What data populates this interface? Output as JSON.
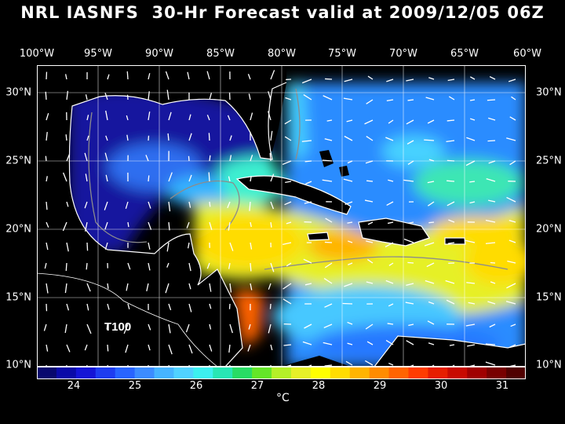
{
  "title": "NRL IASNFS  30-Hr Forecast valid at 2009/12/05 06Z",
  "map": {
    "lon_labels": [
      "100°W",
      "95°W",
      "90°W",
      "85°W",
      "80°W",
      "75°W",
      "70°W",
      "65°W",
      "60°W"
    ],
    "lat_labels": [
      "30°N",
      "25°N",
      "20°N",
      "15°N",
      "10°N"
    ],
    "lon_range": [
      -100,
      -60
    ],
    "lat_range": [
      10,
      31
    ],
    "annotation": "T100",
    "variable": "sea surface temperature with current vectors"
  },
  "colorbar": {
    "ticks": [
      "24",
      "25",
      "26",
      "27",
      "28",
      "29",
      "30",
      "31"
    ],
    "unit": "°C",
    "range": [
      23.5,
      31.5
    ],
    "colors": [
      "#08086e",
      "#0a0aa8",
      "#1414d6",
      "#1e3cf0",
      "#2864ff",
      "#3c8cff",
      "#46b4ff",
      "#50d2ff",
      "#3cf0f0",
      "#28e6b4",
      "#28dc64",
      "#64e628",
      "#b4f028",
      "#e6f028",
      "#ffff00",
      "#ffdc00",
      "#ffb400",
      "#ff8c00",
      "#ff6400",
      "#ff3c00",
      "#e61e00",
      "#c80a00",
      "#a00000",
      "#780000",
      "#500000"
    ]
  }
}
